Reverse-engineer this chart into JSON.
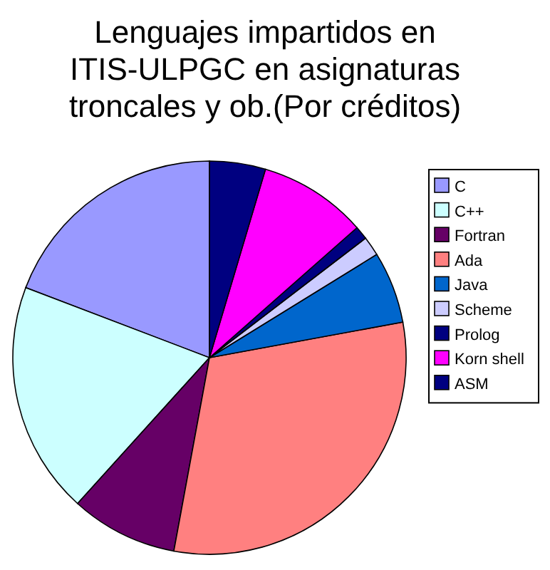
{
  "chart_data": {
    "type": "pie",
    "title": "Lenguajes impartidos en\nITIS-ULPGC en asignaturas\ntroncales y ob.(Por créditos)",
    "categories": [
      "C",
      "C++",
      "Fortran",
      "Ada",
      "Java",
      "Scheme",
      "Prolog",
      "Korn shell",
      "ASM"
    ],
    "values": [
      19.2,
      19.1,
      8.8,
      30.8,
      5.9,
      1.6,
      1.1,
      8.9,
      4.6
    ],
    "colors": [
      "#9999ff",
      "#ccffff",
      "#660066",
      "#ff8080",
      "#0066cc",
      "#ccccff",
      "#000080",
      "#ff00ff",
      "#000080"
    ],
    "legend": "right"
  }
}
